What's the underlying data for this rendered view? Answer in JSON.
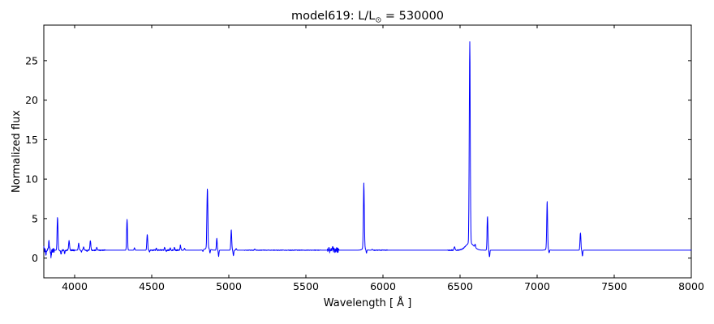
{
  "figure": {
    "title": {
      "prefix": "model619: L/L",
      "sub": "⊙",
      "suffix": " = 530000"
    }
  },
  "chart_data": {
    "type": "line",
    "title": "model619: L/L⊙ = 530000",
    "xlabel": "Wavelength [ Å ]",
    "ylabel": "Normalized flux",
    "xlim": [
      3800,
      8000
    ],
    "ylim": [
      -2.5,
      29.5
    ],
    "xticks": [
      4000,
      4500,
      5000,
      5500,
      6000,
      6500,
      7000,
      7500,
      8000
    ],
    "yticks": [
      0,
      5,
      10,
      15,
      20,
      25
    ],
    "grid": false,
    "legend": "none",
    "line_color": "#0000ff",
    "continuum_level": 1.0,
    "emission_lines": [
      {
        "wavelength": 3799,
        "peak_flux": 1.8,
        "sigma": 2.5
      },
      {
        "wavelength": 3833,
        "peak_flux": 2.0,
        "sigma": 2.5
      },
      {
        "wavelength": 3889,
        "peak_flux": 5.2,
        "sigma": 2.8
      },
      {
        "wavelength": 3964,
        "peak_flux": 2.15,
        "sigma": 3.0
      },
      {
        "wavelength": 4026,
        "peak_flux": 1.9,
        "sigma": 2.8
      },
      {
        "wavelength": 4058,
        "peak_flux": 1.45,
        "sigma": 2.5
      },
      {
        "wavelength": 4102,
        "peak_flux": 2.25,
        "sigma": 2.8
      },
      {
        "wavelength": 4144,
        "peak_flux": 1.35,
        "sigma": 2.5
      },
      {
        "wavelength": 4340,
        "peak_flux": 4.9,
        "sigma": 2.8
      },
      {
        "wavelength": 4388,
        "peak_flux": 1.3,
        "sigma": 2.5
      },
      {
        "wavelength": 4471,
        "peak_flux": 3.0,
        "sigma": 2.8
      },
      {
        "wavelength": 4530,
        "peak_flux": 1.2,
        "sigma": 2.5
      },
      {
        "wavelength": 4584,
        "peak_flux": 1.35,
        "sigma": 2.5
      },
      {
        "wavelength": 4620,
        "peak_flux": 1.25,
        "sigma": 2.5
      },
      {
        "wavelength": 4647,
        "peak_flux": 1.3,
        "sigma": 2.5
      },
      {
        "wavelength": 4686,
        "peak_flux": 1.65,
        "sigma": 2.5
      },
      {
        "wavelength": 4713,
        "peak_flux": 1.25,
        "sigma": 2.5
      },
      {
        "wavelength": 4861,
        "peak_flux": 8.6,
        "sigma": 3.0
      },
      {
        "wavelength": 4922,
        "peak_flux": 2.5,
        "sigma": 2.5
      },
      {
        "wavelength": 5016,
        "peak_flux": 3.6,
        "sigma": 2.8
      },
      {
        "wavelength": 5048,
        "peak_flux": 1.2,
        "sigma": 2.5
      },
      {
        "wavelength": 5169,
        "peak_flux": 1.12,
        "sigma": 3.0
      },
      {
        "wavelength": 5675,
        "peak_flux": 1.55,
        "sigma": 2.5
      },
      {
        "wavelength": 5876,
        "peak_flux": 9.3,
        "sigma": 3.0
      },
      {
        "wavelength": 5930,
        "peak_flux": 1.12,
        "sigma": 2.5
      },
      {
        "wavelength": 6464,
        "peak_flux": 1.4,
        "sigma": 3.5
      },
      {
        "wavelength": 6563,
        "peak_flux": 26.5,
        "sigma": 3.2
      },
      {
        "wavelength": 6598,
        "peak_flux": 1.4,
        "sigma": 2.5
      },
      {
        "wavelength": 6678,
        "peak_flux": 5.3,
        "sigma": 2.8
      },
      {
        "wavelength": 7065,
        "peak_flux": 7.1,
        "sigma": 2.8
      },
      {
        "wavelength": 7281,
        "peak_flux": 3.2,
        "sigma": 2.8
      }
    ],
    "broad_components": [
      {
        "wavelength": 4861,
        "peak_flux": 1.25,
        "sigma": 16
      },
      {
        "wavelength": 5876,
        "peak_flux": 1.2,
        "sigma": 12
      },
      {
        "wavelength": 6563,
        "peak_flux": 1.9,
        "sigma": 26
      },
      {
        "wavelength": 7065,
        "peak_flux": 1.15,
        "sigma": 10
      }
    ],
    "absorption_dips": [
      {
        "wavelength": 3814,
        "min_flux": 0.35,
        "sigma": 2.2
      },
      {
        "wavelength": 3847,
        "min_flux": 0.25,
        "sigma": 2.2
      },
      {
        "wavelength": 3912,
        "min_flux": 0.55,
        "sigma": 2.5
      },
      {
        "wavelength": 3935,
        "min_flux": 0.55,
        "sigma": 2.2
      },
      {
        "wavelength": 4044,
        "min_flux": 0.75,
        "sigma": 2.0
      },
      {
        "wavelength": 4080,
        "min_flux": 0.8,
        "sigma": 2.0
      },
      {
        "wavelength": 4486,
        "min_flux": 0.8,
        "sigma": 2.0
      },
      {
        "wavelength": 4595,
        "min_flux": 0.85,
        "sigma": 2.0
      },
      {
        "wavelength": 4832,
        "min_flux": 0.8,
        "sigma": 2.0
      },
      {
        "wavelength": 4878,
        "min_flux": 0.5,
        "sigma": 2.2
      },
      {
        "wavelength": 4934,
        "min_flux": 0.2,
        "sigma": 2.2
      },
      {
        "wavelength": 5030,
        "min_flux": 0.3,
        "sigma": 2.2
      },
      {
        "wavelength": 5893,
        "min_flux": 0.55,
        "sigma": 2.2
      },
      {
        "wavelength": 6691,
        "min_flux": 0.15,
        "sigma": 2.2
      },
      {
        "wavelength": 7078,
        "min_flux": 0.6,
        "sigma": 2.2
      },
      {
        "wavelength": 7294,
        "min_flux": 0.25,
        "sigma": 2.2
      }
    ],
    "noise_bands": [
      {
        "from": 3800,
        "to": 3870,
        "amplitude": 0.3
      },
      {
        "from": 3900,
        "to": 4000,
        "amplitude": 0.1
      },
      {
        "from": 4050,
        "to": 4200,
        "amplitude": 0.07
      },
      {
        "from": 4480,
        "to": 4700,
        "amplitude": 0.08
      },
      {
        "from": 5100,
        "to": 5600,
        "amplitude": 0.04
      },
      {
        "from": 5640,
        "to": 5715,
        "amplitude": 0.35
      },
      {
        "from": 5940,
        "to": 6030,
        "amplitude": 0.05
      },
      {
        "from": 6420,
        "to": 6540,
        "amplitude": 0.06
      }
    ]
  }
}
